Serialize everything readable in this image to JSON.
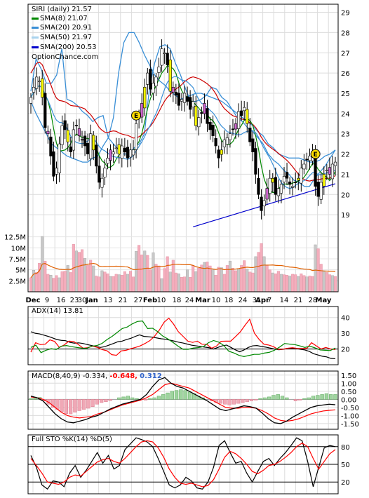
{
  "chart_data": [
    {
      "type": "candlestick",
      "title": "SIRI (daily) 21.57",
      "watermark": "OptionChance.com",
      "legend": [
        {
          "label": "SMA(8) 21.07",
          "color": "#008800"
        },
        {
          "label": "SMA(20) 20.91",
          "color": "#3a8fd6"
        },
        {
          "label": "SMA(50) 21.97",
          "color": "#a9d3ee"
        },
        {
          "label": "SMA(200) 20.53",
          "color": "#0000cc"
        }
      ],
      "legend_placement": "top-left",
      "y_ticks": [
        19,
        20,
        21,
        22,
        23,
        24,
        25,
        26,
        27,
        28,
        29
      ],
      "ylim": [
        18,
        29.4
      ],
      "x_ticks": [
        "Dec",
        "9",
        "16",
        "23",
        "30",
        "Jan",
        "13",
        "21",
        "27",
        "Feb",
        "10",
        "18",
        "24",
        "Mar",
        "10",
        "18",
        "24",
        "31",
        "Apr",
        "7",
        "14",
        "21",
        "28",
        "May"
      ],
      "grid": true,
      "close": [
        24.8,
        25.3,
        25.8,
        25.6,
        24.8,
        23.3,
        23.0,
        21.9,
        20.9,
        21.3,
        22.5,
        23.4,
        23.2,
        22.6,
        22.1,
        23.2,
        23.4,
        22.9,
        22.7,
        22.4,
        22.0,
        23.0,
        22.2,
        21.4,
        20.6,
        20.8,
        21.3,
        21.8,
        22.2,
        22.1,
        22.3,
        22.0,
        22.4,
        22.1,
        21.8,
        22.2,
        22.2,
        23.5,
        23.9,
        24.5,
        25.3,
        26.0,
        25.2,
        25.5,
        25.8,
        26.3,
        27.2,
        27.0,
        26.4,
        25.1,
        25.3,
        24.9,
        24.4,
        24.7,
        25.0,
        24.6,
        24.2,
        24.6,
        23.4,
        23.8,
        24.0,
        24.5,
        23.5,
        23.2,
        22.9,
        22.4,
        21.8,
        22.2,
        22.7,
        22.8,
        23.0,
        23.2,
        23.5,
        24.1,
        23.9,
        24.3,
        23.5,
        22.6,
        22.1,
        21.0,
        20.0,
        19.2,
        19.7,
        20.3,
        20.8,
        20.6,
        20.0,
        20.3,
        20.5,
        20.9,
        20.8,
        20.5,
        20.4,
        20.6,
        20.8,
        21.3,
        21.5,
        21.7,
        21.9,
        22.0,
        20.4,
        19.9,
        20.6,
        21.0,
        21.2,
        21.0,
        21.5,
        21.6
      ],
      "sma20_upper": [
        25.1,
        26.7,
        26.2,
        25.5,
        25.5,
        25.9,
        27.2,
        24.7,
        24.6,
        24.4,
        24.1,
        23.9,
        23.6,
        23.8,
        23.9,
        22.8,
        22.5,
        22.2,
        22.0,
        22.0,
        22.3,
        22.5,
        23.0,
        25.3,
        26.5,
        27.3,
        27.4,
        27.2,
        26.5,
        25.9,
        25.2,
        24.6,
        24.6,
        24.7,
        24.9,
        25.3,
        25.2,
        24.8,
        24.6,
        24.2,
        23.8,
        23.6,
        23.3,
        23.1,
        22.8,
        22.5,
        22.0,
        21.7,
        21.5,
        21.2,
        21.0,
        20.7,
        20.6,
        20.4,
        20.4,
        20.8,
        21.1,
        21.4,
        21.8,
        22.2
      ],
      "sma20_lower": [
        24.6,
        24.0,
        23.5,
        23.0,
        22.5,
        22.3,
        22.1,
        21.9,
        21.8,
        21.7,
        21.6,
        21.6,
        21.8,
        21.9,
        22.4,
        22.8,
        23.8,
        26.0,
        27.5,
        28.0,
        28.0,
        27.5,
        26.9,
        26.4,
        25.9,
        25.6,
        25.4,
        25.1,
        24.9,
        24.7,
        24.8,
        24.9,
        25.0,
        25.0,
        24.9,
        24.8,
        24.7,
        24.6,
        24.4,
        24.2,
        24.0,
        23.8,
        23.6,
        23.4,
        23.1,
        22.9,
        22.5,
        22.3,
        22.0,
        21.9,
        21.8,
        21.8,
        21.8,
        21.7,
        21.6,
        21.6,
        21.7,
        21.9,
        22.0,
        22.2
      ],
      "sma200_start_end": [
        18.4,
        20.53
      ]
    },
    {
      "type": "bar",
      "title": "Volume",
      "y_ticks": [
        "12.5M",
        "10M",
        "7.5M",
        "5M",
        "2.5M"
      ],
      "ylim": [
        0,
        15
      ],
      "volume_avg_color": "#e06000",
      "values": [
        3.2,
        4.9,
        4.4,
        6.5,
        12.6,
        7.0,
        4.0,
        3.8,
        3.1,
        3.7,
        3.2,
        4.6,
        4.7,
        6.0,
        4.4,
        10.8,
        9.3,
        9.0,
        9.6,
        7.6,
        6.0,
        7.2,
        5.9,
        3.6,
        3.4,
        4.8,
        4.5,
        4.1,
        3.5,
        3.5,
        4.0,
        3.9,
        3.8,
        4.6,
        4.0,
        4.7,
        3.4,
        9.2,
        10.6,
        8.4,
        9.3,
        8.3,
        5.0,
        8.9,
        6.3,
        5.9,
        3.0,
        5.3,
        8.0,
        4.5,
        7.2,
        4.3,
        4.1,
        3.3,
        3.4,
        5.0,
        3.3,
        6.0,
        4.6,
        5.4,
        6.1,
        6.7,
        6.8,
        5.9,
        5.0,
        3.8,
        5.6,
        5.5,
        4.0,
        6.0,
        7.0,
        5.4,
        4.8,
        5.3,
        6.0,
        7.1,
        5.2,
        4.5,
        4.3,
        8.0,
        9.0,
        11.0,
        8.0,
        6.0,
        5.0,
        4.3,
        4.1,
        4.7,
        4.0,
        3.9,
        3.8,
        3.6,
        4.0,
        3.9,
        3.5,
        4.1,
        3.7,
        3.4,
        3.6,
        3.5,
        10.7,
        9.8,
        6.3,
        4.8,
        4.4,
        3.9,
        3.7,
        3.5
      ]
    },
    {
      "type": "line",
      "title": "ADX(14) 13.81",
      "y_ticks": [
        20,
        30,
        40
      ],
      "ylim": [
        10,
        47
      ],
      "series": [
        {
          "color": "#000000",
          "values": [
            31.0,
            30.0,
            29.6,
            28.8,
            28.0,
            27.0,
            26.0,
            25.5,
            25.3,
            24.2,
            23.7,
            23.9,
            23.5,
            22.8,
            22.2,
            21.5,
            21.0,
            21.5,
            22.5,
            23.5,
            24.6,
            25.0,
            26.0,
            26.8,
            28.0,
            29.0,
            28.0,
            27.8,
            27.5,
            27.0,
            26.5,
            26.2,
            25.6,
            25.0,
            24.3,
            23.8,
            23.1,
            22.4,
            22.0,
            21.6,
            21.2,
            20.8,
            20.0,
            21.0,
            22.0,
            22.5,
            21.0,
            19.5,
            18.2,
            19.4,
            21.0,
            22.0,
            22.2,
            21.6,
            21.2,
            20.6,
            20.0,
            19.5,
            19.8,
            20.4,
            20.5,
            20.3,
            19.8,
            19.4,
            18.5,
            17.0,
            16.2,
            15.4,
            15.0,
            14.0,
            13.81
          ]
        },
        {
          "color": "#ff0000",
          "values": [
            18.0,
            24.0,
            22.8,
            23.0,
            25.8,
            24.8,
            21.0,
            22.6,
            25.0,
            24.8,
            22.8,
            20.5,
            20.9,
            21.8,
            21.0,
            19.6,
            18.9,
            16.4,
            16.0,
            18.8,
            19.2,
            20.2,
            21.0,
            22.0,
            23.5,
            25.3,
            28.1,
            32.0,
            37.0,
            39.6,
            35.8,
            31.0,
            28.0,
            25.0,
            24.2,
            25.0,
            23.0,
            22.9,
            20.5,
            21.8,
            24.9,
            25.0,
            25.0,
            27.8,
            30.8,
            35.0,
            38.9,
            30.0,
            26.0,
            23.0,
            22.5,
            21.5,
            19.7,
            19.9,
            20.5,
            20.8,
            20.4,
            20.3,
            20.3,
            24.0,
            22.0,
            20.0,
            21.0,
            20.0,
            19.6
          ]
        },
        {
          "color": "#008800",
          "values": [
            21.0,
            22.4,
            17.7,
            19.2,
            20.2,
            19.7,
            21.8,
            22.2,
            21.5,
            21.0,
            20.6,
            20.4,
            21.8,
            22.2,
            23.5,
            26.0,
            28.0,
            30.5,
            33.0,
            34.0,
            36.0,
            37.5,
            37.8,
            33.0,
            33.2,
            31.0,
            28.2,
            26.4,
            24.2,
            21.8,
            19.8,
            19.8,
            20.6,
            20.9,
            21.5,
            24.0,
            25.4,
            24.4,
            22.3,
            18.6,
            17.5,
            16.0,
            15.2,
            15.9,
            16.6,
            16.6,
            17.4,
            17.9,
            19.2,
            21.2,
            23.5,
            23.1,
            22.8,
            22.0,
            21.0,
            21.8,
            20.7,
            19.4,
            19.2,
            19.0,
            20.6
          ]
        }
      ]
    },
    {
      "type": "bar",
      "title": "MACD(8,40,9)",
      "legend": [
        {
          "label": "-0.334,",
          "color": "#000000"
        },
        {
          "label": "-0.648,",
          "color": "#ff0000"
        },
        {
          "label": "0.312",
          "color": "#3366cc"
        }
      ],
      "y_ticks": [
        "1.50",
        "1.00",
        "0.50",
        "0.00",
        "-0.50",
        "-1.00",
        "-1.50"
      ],
      "ylim": [
        -1.85,
        1.75
      ],
      "histogram": [
        0.05,
        0.1,
        0.12,
        -0.1,
        -0.3,
        -0.5,
        -0.62,
        -0.75,
        -0.88,
        -0.9,
        -0.8,
        -0.7,
        -0.62,
        -0.55,
        -0.45,
        -0.3,
        -0.2,
        -0.15,
        -0.08,
        0.0,
        0.1,
        0.15,
        0.2,
        0.1,
        0.05,
        0.0,
        -0.05,
        0.05,
        0.1,
        0.2,
        0.3,
        0.4,
        0.5,
        0.55,
        0.6,
        0.55,
        0.45,
        0.35,
        0.2,
        0.1,
        0.0,
        -0.1,
        -0.2,
        -0.25,
        -0.3,
        -0.35,
        -0.3,
        -0.25,
        -0.2,
        -0.15,
        -0.1,
        -0.05,
        0.05,
        0.1,
        0.15,
        0.25,
        0.3,
        0.2,
        0.1,
        0.0,
        -0.1,
        -0.05,
        0.05,
        0.1,
        0.2,
        0.25,
        0.3,
        0.35,
        0.3,
        0.3
      ],
      "macd_line": [
        0.2,
        0.1,
        -0.1,
        -0.5,
        -0.9,
        -1.2,
        -1.4,
        -1.45,
        -1.35,
        -1.25,
        -1.1,
        -1.0,
        -0.8,
        -0.6,
        -0.45,
        -0.3,
        -0.2,
        -0.1,
        0.0,
        0.3,
        0.8,
        1.2,
        1.35,
        1.0,
        0.8,
        0.7,
        0.5,
        0.3,
        0.1,
        -0.1,
        -0.35,
        -0.6,
        -0.7,
        -0.6,
        -0.5,
        -0.4,
        -0.45,
        -0.55,
        -0.85,
        -1.2,
        -1.45,
        -1.5,
        -1.35,
        -1.1,
        -0.9,
        -0.7,
        -0.5,
        -0.4,
        -0.35,
        -0.3,
        -0.334
      ],
      "signal_line": [
        0.15,
        0.1,
        0.0,
        -0.2,
        -0.5,
        -0.8,
        -1.0,
        -1.1,
        -1.15,
        -1.1,
        -1.05,
        -0.9,
        -0.8,
        -0.65,
        -0.5,
        -0.35,
        -0.25,
        -0.15,
        -0.05,
        0.1,
        0.3,
        0.6,
        0.9,
        1.0,
        0.9,
        0.8,
        0.7,
        0.5,
        0.3,
        0.1,
        -0.1,
        -0.3,
        -0.5,
        -0.55,
        -0.55,
        -0.5,
        -0.5,
        -0.55,
        -0.7,
        -0.9,
        -1.15,
        -1.3,
        -1.35,
        -1.3,
        -1.2,
        -1.05,
        -0.9,
        -0.8,
        -0.72,
        -0.68,
        -0.648
      ]
    },
    {
      "type": "line",
      "title": "Full STO %K(14) %D(5)",
      "y_ticks": [
        20,
        50,
        80
      ],
      "ylim": [
        0,
        100
      ],
      "series": [
        {
          "color": "#000000",
          "values": [
            65,
            45,
            15,
            8,
            22,
            20,
            12,
            35,
            48,
            28,
            40,
            55,
            70,
            52,
            65,
            42,
            48,
            75,
            85,
            95,
            92,
            88,
            80,
            60,
            38,
            15,
            10,
            15,
            28,
            22,
            10,
            8,
            20,
            45,
            82,
            90,
            70,
            52,
            55,
            35,
            20,
            38,
            55,
            60,
            48,
            60,
            70,
            82,
            95,
            90,
            55,
            12,
            45,
            78,
            82,
            80
          ]
        },
        {
          "color": "#ff0000",
          "values": [
            60,
            48,
            35,
            20,
            18,
            16,
            20,
            28,
            32,
            30,
            38,
            46,
            54,
            58,
            60,
            55,
            52,
            60,
            70,
            80,
            88,
            90,
            88,
            78,
            62,
            42,
            28,
            18,
            16,
            18,
            15,
            12,
            14,
            24,
            42,
            62,
            72,
            68,
            60,
            50,
            38,
            34,
            40,
            48,
            50,
            55,
            62,
            70,
            80,
            86,
            80,
            60,
            42,
            55,
            68,
            75
          ]
        }
      ]
    }
  ]
}
